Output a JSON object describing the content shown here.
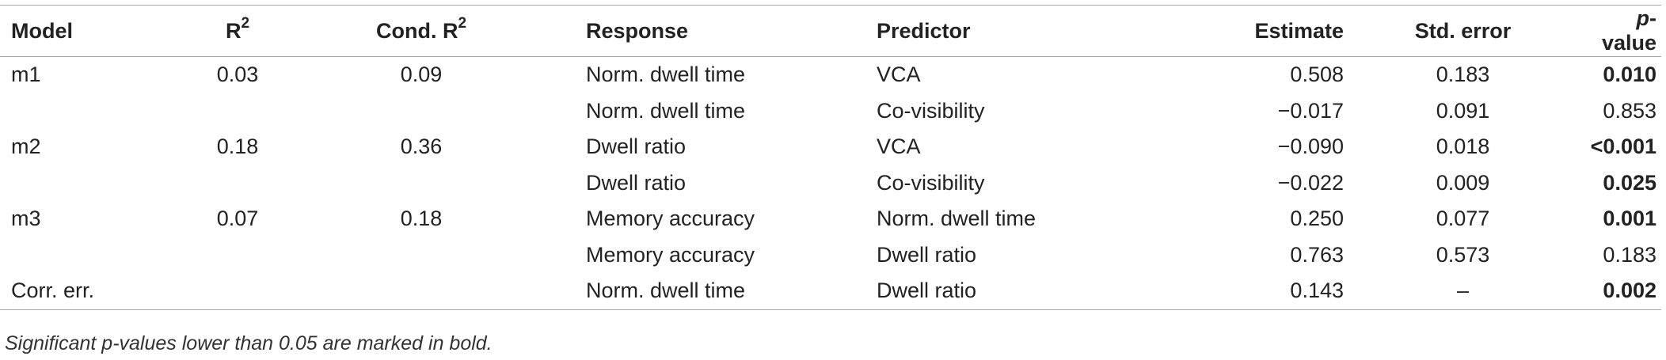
{
  "table": {
    "headers": {
      "model": "Model",
      "r2_base": "R",
      "r2_sup": "2",
      "cond_r2_base": "Cond. R",
      "cond_r2_sup": "2",
      "response": "Response",
      "predictor": "Predictor",
      "estimate": "Estimate",
      "std_error": "Std. error",
      "pvalue_italic": "p",
      "pvalue_rest": "-value"
    },
    "rows": [
      {
        "model": "m1",
        "r2": "0.03",
        "cond_r2": "0.09",
        "response": "Norm. dwell time",
        "predictor": "VCA",
        "estimate": "0.508",
        "std_error": "0.183",
        "pvalue": "0.010",
        "bold": true
      },
      {
        "model": "",
        "r2": "",
        "cond_r2": "",
        "response": "Norm. dwell time",
        "predictor": "Co-visibility",
        "estimate": "−0.017",
        "std_error": "0.091",
        "pvalue": "0.853",
        "bold": false
      },
      {
        "model": "m2",
        "r2": "0.18",
        "cond_r2": "0.36",
        "response": "Dwell ratio",
        "predictor": "VCA",
        "estimate": "−0.090",
        "std_error": "0.018",
        "pvalue": "<0.001",
        "bold": true
      },
      {
        "model": "",
        "r2": "",
        "cond_r2": "",
        "response": "Dwell ratio",
        "predictor": "Co-visibility",
        "estimate": "−0.022",
        "std_error": "0.009",
        "pvalue": "0.025",
        "bold": true
      },
      {
        "model": "m3",
        "r2": "0.07",
        "cond_r2": "0.18",
        "response": "Memory accuracy",
        "predictor": "Norm. dwell time",
        "estimate": "0.250",
        "std_error": "0.077",
        "pvalue": "0.001",
        "bold": true
      },
      {
        "model": "",
        "r2": "",
        "cond_r2": "",
        "response": "Memory accuracy",
        "predictor": "Dwell ratio",
        "estimate": "0.763",
        "std_error": "0.573",
        "pvalue": "0.183",
        "bold": false
      },
      {
        "model": "Corr. err.",
        "r2": "",
        "cond_r2": "",
        "response": "Norm. dwell time",
        "predictor": "Dwell ratio",
        "estimate": "0.143",
        "std_error": "–",
        "pvalue": "0.002",
        "bold": true
      }
    ]
  },
  "footnote": "Significant p-values lower than 0.05 are marked in bold."
}
